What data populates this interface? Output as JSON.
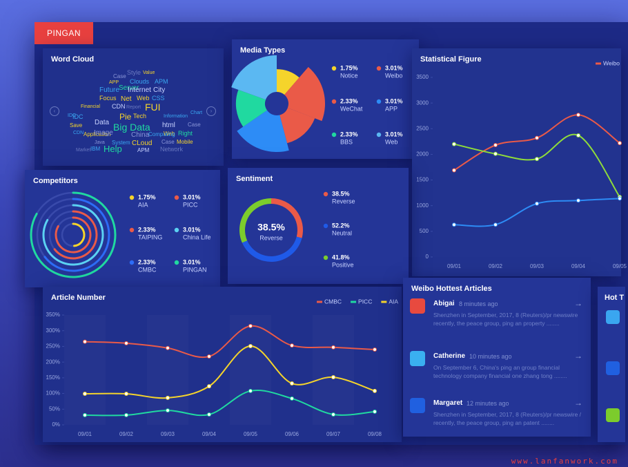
{
  "brand": "PINGAN",
  "word_cloud": {
    "title": "Word Cloud",
    "words": [
      "Case",
      "Style",
      "Value",
      "APP",
      "Clouds",
      "APM",
      "Future",
      "Server",
      "Internet",
      "City",
      "Focus",
      "Net",
      "Web",
      "CSS",
      "Financial",
      "CDN",
      "Report",
      "FUI",
      "IDC",
      "Pie",
      "Tech",
      "Information",
      "Save",
      "Data",
      "html",
      "Case",
      "Big Data",
      "CDN",
      "Application",
      "Web",
      "Right",
      "Image",
      "China",
      "Computing",
      "Java",
      "System",
      "Case",
      "Mobile",
      "Market",
      "IBM",
      "Help",
      "CLoud",
      "APM",
      "Network",
      "IDC",
      "Chart"
    ]
  },
  "chart_data": [
    {
      "type": "rose",
      "title": "Media Types",
      "categories": [
        "Notice",
        "Weibo",
        "WeChat",
        "APP",
        "BBS",
        "Web"
      ],
      "values": [
        1.75,
        3.01,
        2.33,
        3.01,
        2.33,
        3.01
      ],
      "value_labels": [
        "1.75%",
        "3.01%",
        "2.33%",
        "3.01%",
        "2.33%",
        "3.01%"
      ],
      "colors": [
        "#f5d42b",
        "#ea5a48",
        "#ea5a48",
        "#2d8cf6",
        "#20d9a0",
        "#5bb8f2"
      ]
    },
    {
      "type": "radial-bar",
      "title": "Competitors",
      "categories": [
        "AIA",
        "PICC",
        "TAIPING",
        "China Life",
        "CMBC",
        "PINGAN"
      ],
      "values": [
        1.75,
        3.01,
        2.33,
        3.01,
        2.33,
        3.01
      ],
      "value_labels": [
        "1.75%",
        "3.01%",
        "2.33%",
        "3.01%",
        "2.33%",
        "3.01%"
      ],
      "colors": [
        "#f5d42b",
        "#ea5a48",
        "#ea5a48",
        "#5bd2f2",
        "#2d6cf6",
        "#20d9a0"
      ]
    },
    {
      "type": "donut",
      "title": "Sentiment",
      "categories": [
        "Reverse",
        "Neutral",
        "Positive"
      ],
      "values": [
        38.5,
        52.2,
        41.8
      ],
      "value_labels": [
        "38.5%",
        "52.2%",
        "41.8%"
      ],
      "colors": [
        "#ea5a48",
        "#1f5ae8",
        "#7ccc2c"
      ]
    },
    {
      "type": "line",
      "title": "Statistical Figure",
      "categories": [
        "09/01",
        "09/02",
        "09/03",
        "09/04",
        "09/05"
      ],
      "series": [
        {
          "name": "Weibo",
          "color": "#ea5a48",
          "values": [
            1690,
            2180,
            2320,
            2770,
            2220
          ]
        },
        {
          "color": "#8fdc3a",
          "values": [
            2200,
            2010,
            1910,
            2370,
            1170
          ]
        },
        {
          "color": "#2d8cf6",
          "values": [
            630,
            630,
            1040,
            1100,
            1140
          ]
        }
      ],
      "ylim": [
        0,
        3500
      ],
      "yticks": [
        0,
        500,
        1000,
        1500,
        2000,
        2500,
        3000,
        3500
      ]
    },
    {
      "type": "line",
      "title": "Article Number",
      "categories": [
        "09/01",
        "09/02",
        "09/03",
        "09/04",
        "09/05",
        "09/06",
        "09/07",
        "09/08"
      ],
      "series": [
        {
          "name": "CMBC",
          "color": "#ea5a48",
          "values": [
            265,
            260,
            245,
            218,
            315,
            253,
            247,
            240
          ]
        },
        {
          "name": "PICC",
          "color": "#20d9a0",
          "values": [
            31,
            31,
            46,
            33,
            108,
            84,
            33,
            42
          ]
        },
        {
          "name": "AIA",
          "color": "#f5d42b",
          "values": [
            99,
            99,
            86,
            123,
            251,
            132,
            152,
            108
          ]
        }
      ],
      "ylim": [
        0,
        350
      ],
      "yticks": [
        {
          "value": 0,
          "label": "0%"
        },
        {
          "value": 50,
          "label": "50%"
        },
        {
          "value": 100,
          "label": "100%"
        },
        {
          "value": 150,
          "label": "150%"
        },
        {
          "value": 200,
          "label": "200%"
        },
        {
          "value": 250,
          "label": "250%"
        },
        {
          "value": 300,
          "label": "300%"
        },
        {
          "value": 350,
          "label": "350%"
        }
      ]
    }
  ],
  "weibo_articles": {
    "title": "Weibo Hottest Articles",
    "items": [
      {
        "name": "Abigai",
        "time": "8 minutes ago",
        "text": "Shenzhen in September, 2017, 8 (Reuters)/pr newswire recently, the peace group, ping an property ........"
      },
      {
        "name": "Catherine",
        "time": "10 minutes ago",
        "text": "On September 6, China's ping an group financial technology company financial one zhang tong ........"
      },
      {
        "name": "Margaret",
        "time": "12 minutes ago",
        "text": "Shenzhen in September, 2017, 8 (Reuters)/pr newswire / recently, the peace group, ping an patent ........"
      }
    ]
  },
  "hot_topics": {
    "title": "Hot T"
  },
  "watermark": "www.lanfanwork.com"
}
